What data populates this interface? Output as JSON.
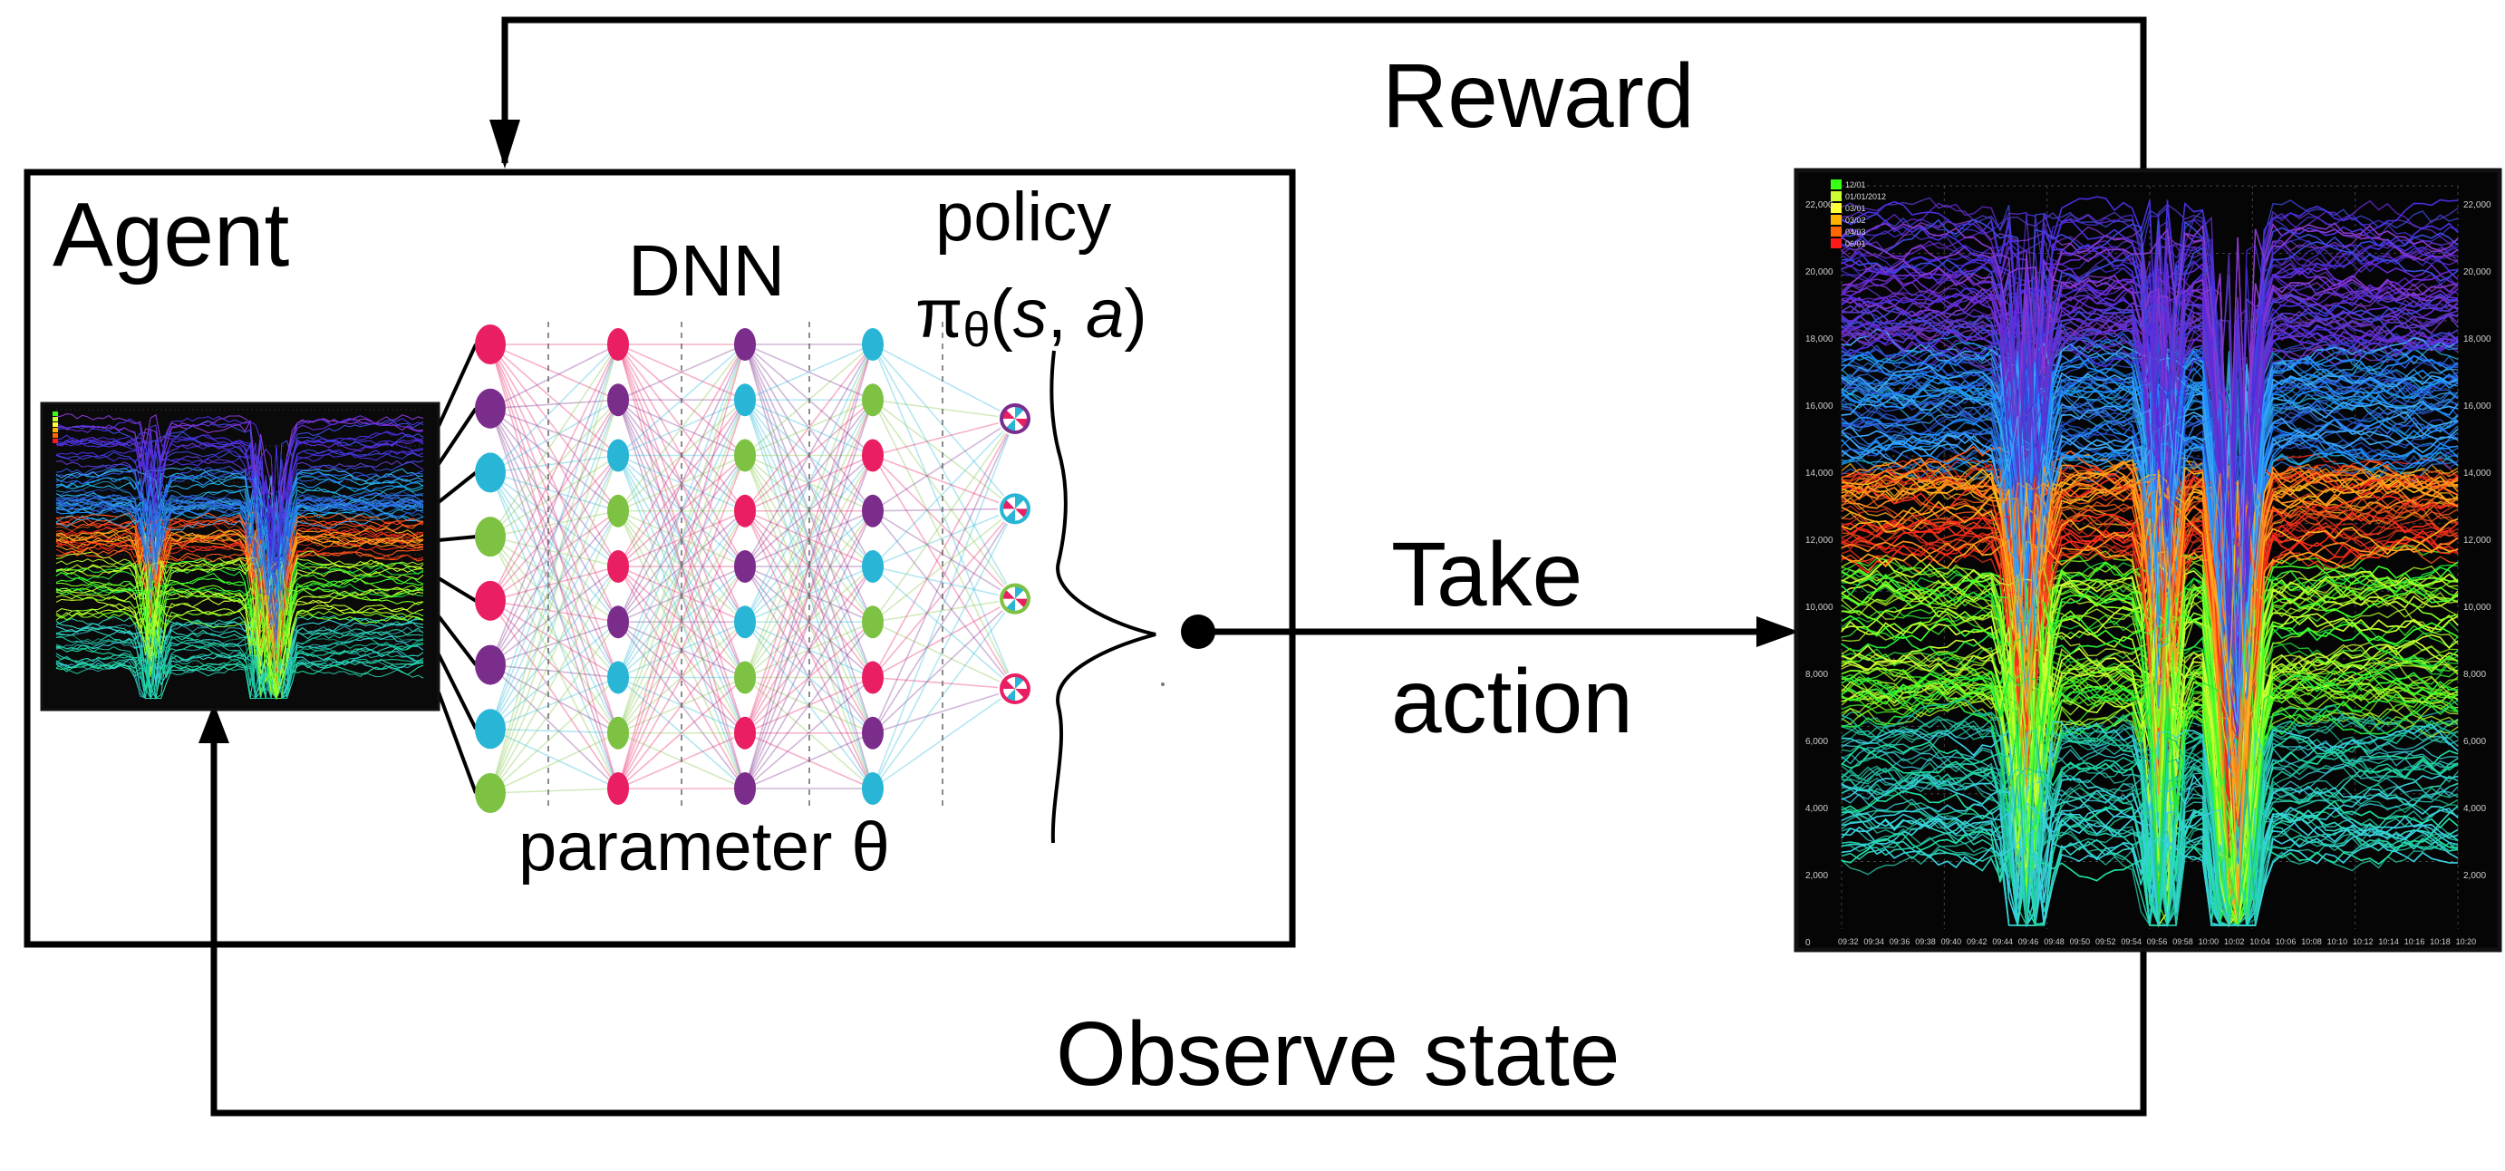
{
  "labels": {
    "reward": "Reward",
    "agent": "Agent",
    "dnn": "DNN",
    "policy": "policy",
    "policy_pi": "π",
    "policy_sub": "θ",
    "policy_open": "(",
    "policy_s": "s",
    "policy_comma": ", ",
    "policy_a": "a",
    "policy_close": ")",
    "parameter": "parameter θ",
    "take": "Take",
    "action": "action",
    "observe_state": "Observe state"
  },
  "big_plot": {
    "y_ticks": [
      "22,000",
      "20,000",
      "18,000",
      "16,000",
      "14,000",
      "12,000",
      "10,000",
      "8,000",
      "6,000",
      "4,000",
      "2,000",
      "0"
    ],
    "y_ticks_right": [
      "22,000",
      "20,000",
      "18,000",
      "16,000",
      "14,000",
      "12,000",
      "10,000",
      "8,000",
      "6,000",
      "4,000",
      "2,000"
    ],
    "x_ticks": [
      "09:32",
      "09:34",
      "09:36",
      "09:38",
      "09:40",
      "09:42",
      "09:44",
      "09:46",
      "09:48",
      "09:50",
      "09:52",
      "09:54",
      "09:56",
      "09:58",
      "10:00",
      "10:02",
      "10:04",
      "10:06",
      "10:08",
      "10:10",
      "10:12",
      "10:14",
      "10:16",
      "10:18",
      "10:20"
    ],
    "legend": [
      "12/01",
      "01/01/2012",
      "03/01",
      "03/02",
      "04/03",
      "06/01"
    ],
    "legend_colors": [
      "#39ff14",
      "#ccff33",
      "#ffff33",
      "#ffb300",
      "#ff6600",
      "#ff1a1a"
    ]
  },
  "network": {
    "layers": [
      [
        "#e91e63",
        "#7b2d8b",
        "#29b6d6",
        "#7dc242",
        "#e91e63",
        "#7b2d8b",
        "#29b6d6",
        "#7dc242"
      ],
      [
        "#e91e63",
        "#7b2d8b",
        "#29b6d6",
        "#7dc242",
        "#e91e63",
        "#7b2d8b",
        "#29b6d6",
        "#7dc242",
        "#e91e63"
      ],
      [
        "#7b2d8b",
        "#29b6d6",
        "#7dc242",
        "#e91e63",
        "#7b2d8b",
        "#29b6d6",
        "#7dc242",
        "#e91e63",
        "#7b2d8b"
      ],
      [
        "#29b6d6",
        "#7dc242",
        "#e91e63",
        "#7b2d8b",
        "#29b6d6",
        "#7dc242",
        "#e91e63",
        "#7b2d8b",
        "#29b6d6"
      ],
      [
        "#7b2d8b",
        "#29b6d6",
        "#7dc242",
        "#e91e63"
      ]
    ]
  }
}
